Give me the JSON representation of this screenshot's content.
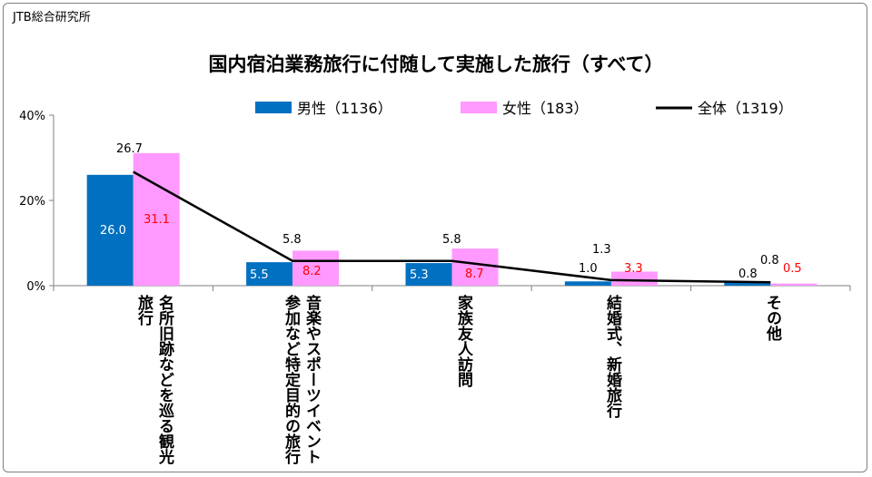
{
  "source": "JTB総合研究所",
  "chart_data": {
    "type": "bar",
    "title": "国内宿泊業務旅行に付随して実施した旅行（すべて）",
    "categories": [
      "名所旧跡などを巡る観光旅行",
      "音楽やスポーツイベント参加など特定目的の旅行",
      "家族友人訪問",
      "結婚式、新婚旅行",
      "その他"
    ],
    "ylim": [
      0,
      40
    ],
    "yticks": [
      "0%",
      "20%",
      "40%"
    ],
    "series": [
      {
        "name": "男性（1136）",
        "kind": "bar",
        "color": "#0070c0",
        "label_color": "#ffffff",
        "values": [
          26.0,
          5.5,
          5.3,
          1.0,
          0.8
        ],
        "labels": [
          "26.0",
          "5.5",
          "5.3",
          "1.0",
          "0.8"
        ]
      },
      {
        "name": "女性（183）",
        "kind": "bar",
        "color": "#ff99ff",
        "label_color": "#ff0000",
        "values": [
          31.1,
          8.2,
          8.7,
          3.3,
          0.5
        ],
        "labels": [
          "31.1",
          "8.2",
          "8.7",
          "3.3",
          "0.5"
        ]
      },
      {
        "name": "全体（1319）",
        "kind": "line",
        "color": "#000000",
        "values": [
          26.7,
          5.8,
          5.8,
          1.3,
          0.8
        ],
        "labels": [
          "26.7",
          "5.8",
          "5.8",
          "1.3",
          "0.8"
        ]
      }
    ]
  }
}
